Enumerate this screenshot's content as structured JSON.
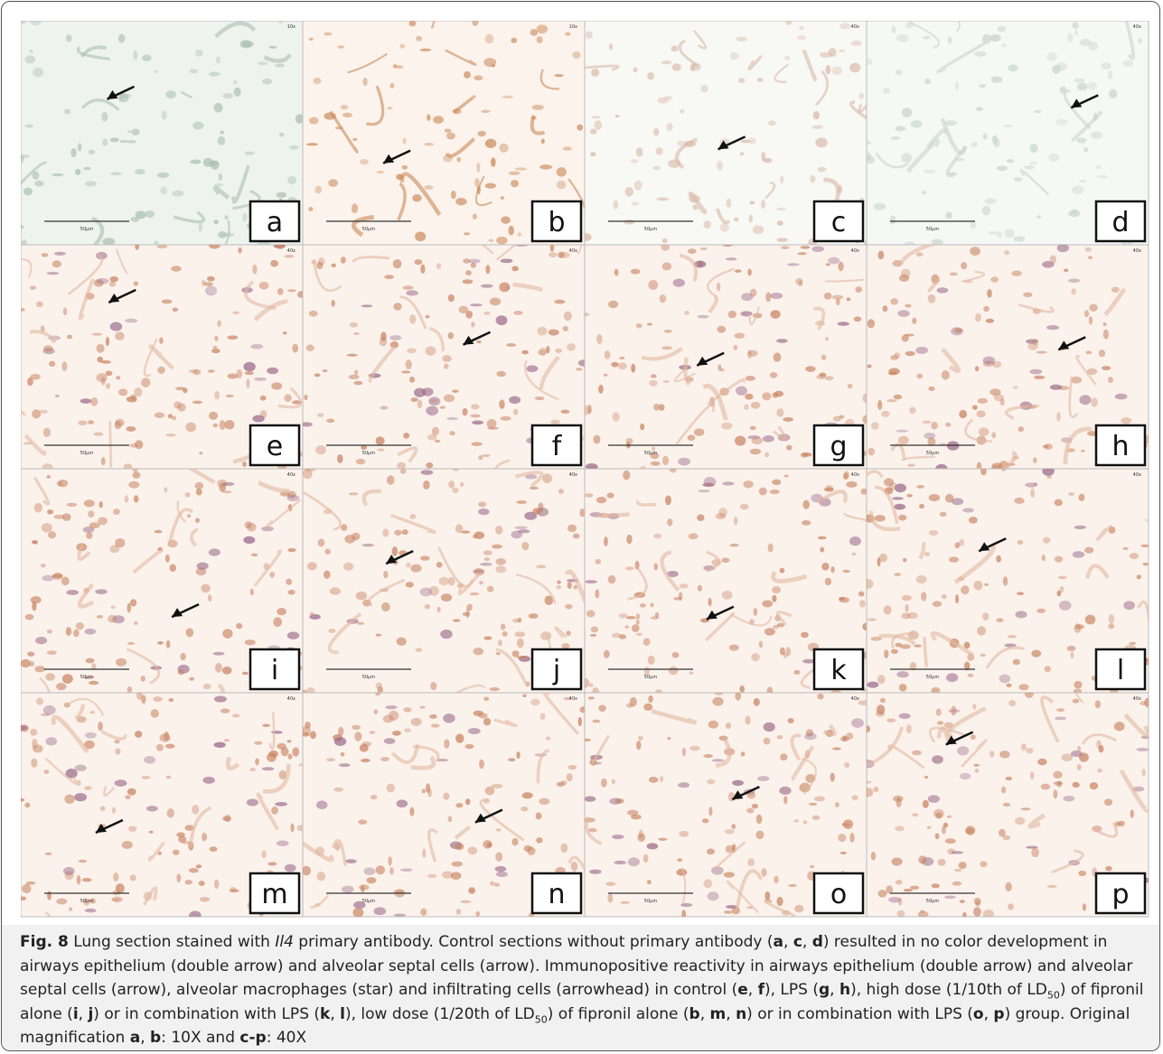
{
  "figure": {
    "panels": [
      {
        "label": "a",
        "scale": "50µm",
        "mag": "10x"
      },
      {
        "label": "b",
        "scale": "50µm",
        "mag": "10x"
      },
      {
        "label": "c",
        "scale": "50µm",
        "mag": "40x"
      },
      {
        "label": "d",
        "scale": "50µm",
        "mag": "40x"
      },
      {
        "label": "e",
        "scale": "50µm",
        "mag": "40x"
      },
      {
        "label": "f",
        "scale": "50µm",
        "mag": "40x"
      },
      {
        "label": "g",
        "scale": "50µm",
        "mag": "40x"
      },
      {
        "label": "h",
        "scale": "50µm",
        "mag": "40x"
      },
      {
        "label": "i",
        "scale": "50µm",
        "mag": "40x"
      },
      {
        "label": "j",
        "scale": "50µm",
        "mag": "40x"
      },
      {
        "label": "k",
        "scale": "50µm",
        "mag": "40x"
      },
      {
        "label": "l",
        "scale": "50µm",
        "mag": "40x"
      },
      {
        "label": "m",
        "scale": "50µm",
        "mag": "40x"
      },
      {
        "label": "n",
        "scale": "50µm",
        "mag": "40x"
      },
      {
        "label": "o",
        "scale": "50µm",
        "mag": "40x"
      },
      {
        "label": "p",
        "scale": "50µm",
        "mag": "40x"
      }
    ]
  },
  "caption": {
    "runs": [
      {
        "text": "Fig. 8",
        "style": "bold"
      },
      {
        "text": " Lung section stained with "
      },
      {
        "text": "Il4",
        "style": "italic"
      },
      {
        "text": " primary antibody. Control sections without primary antibody ("
      },
      {
        "text": "a",
        "style": "bold"
      },
      {
        "text": ", "
      },
      {
        "text": "c",
        "style": "bold"
      },
      {
        "text": ", "
      },
      {
        "text": "d",
        "style": "bold"
      },
      {
        "text": ") resulted in no color development in airways epithelium (double arrow) and alveolar septal cells (arrow). Immunopositive reactivity in airways epithelium (double arrow) and alveolar septal cells (arrow), alveolar macrophages (star) and infiltrating cells (arrowhead) in control ("
      },
      {
        "text": "e",
        "style": "bold"
      },
      {
        "text": ", "
      },
      {
        "text": "f",
        "style": "bold"
      },
      {
        "text": "), LPS ("
      },
      {
        "text": "g",
        "style": "bold"
      },
      {
        "text": ", "
      },
      {
        "text": "h",
        "style": "bold"
      },
      {
        "text": "), high dose (1/10th of LD"
      },
      {
        "text": "50",
        "style": "sub"
      },
      {
        "text": ") of fipronil alone ("
      },
      {
        "text": "i",
        "style": "bold"
      },
      {
        "text": ", "
      },
      {
        "text": "j",
        "style": "bold"
      },
      {
        "text": ") or in combination with LPS ("
      },
      {
        "text": "k",
        "style": "bold"
      },
      {
        "text": ", "
      },
      {
        "text": "l",
        "style": "bold"
      },
      {
        "text": "), low dose (1/20th of LD"
      },
      {
        "text": "50",
        "style": "sub"
      },
      {
        "text": ") of fipronil alone ("
      },
      {
        "text": "b",
        "style": "bold"
      },
      {
        "text": ", "
      },
      {
        "text": "m",
        "style": "bold"
      },
      {
        "text": ", "
      },
      {
        "text": "n",
        "style": "bold"
      },
      {
        "text": ") or in combination with LPS ("
      },
      {
        "text": "o",
        "style": "bold"
      },
      {
        "text": ", "
      },
      {
        "text": "p",
        "style": "bold"
      },
      {
        "text": ") group. Original magnification "
      },
      {
        "text": "a",
        "style": "bold"
      },
      {
        "text": ", "
      },
      {
        "text": "b",
        "style": "bold"
      },
      {
        "text": ": 10X and "
      },
      {
        "text": "c-p",
        "style": "bold"
      },
      {
        "text": ": 40X"
      }
    ]
  }
}
